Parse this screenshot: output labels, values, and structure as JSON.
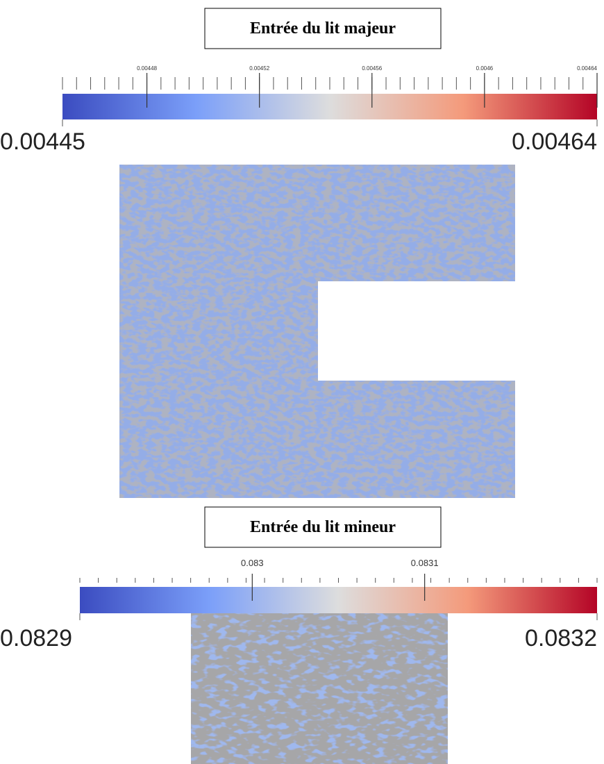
{
  "panels": [
    {
      "title": "Entrée du lit majeur",
      "colorbar": {
        "min": 0.00445,
        "max": 0.00464,
        "ticks": [
          0.00448,
          0.00452,
          0.00456,
          0.0046,
          0.00464
        ]
      }
    },
    {
      "title": "Entrée du lit mineur",
      "colorbar": {
        "min": 0.0829,
        "max": 0.0832,
        "ticks": [
          0.083,
          0.0831
        ]
      }
    }
  ]
}
